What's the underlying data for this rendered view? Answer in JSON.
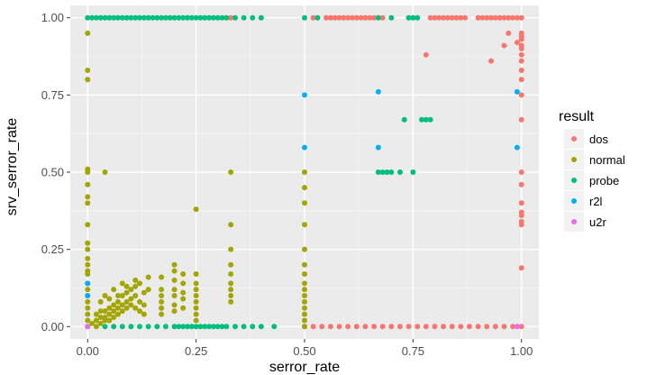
{
  "chart_data": {
    "type": "scatter",
    "xlabel": "serror_rate",
    "ylabel": "srv_serror_rate",
    "xlim": [
      -0.04,
      1.04
    ],
    "ylim": [
      -0.04,
      1.04
    ],
    "x_ticks": [
      0.0,
      0.25,
      0.5,
      0.75,
      1.0
    ],
    "x_tick_labels": [
      "0.00",
      "0.25",
      "0.50",
      "0.75",
      "1.00"
    ],
    "y_ticks": [
      0.0,
      0.25,
      0.5,
      0.75,
      1.0
    ],
    "y_tick_labels": [
      "0.00",
      "0.25",
      "0.50",
      "0.75",
      "1.00"
    ],
    "grid": true,
    "legend": {
      "title": "result",
      "placement": "right",
      "items": [
        {
          "label": "dos",
          "color": "#F8766D"
        },
        {
          "label": "normal",
          "color": "#A3A500"
        },
        {
          "label": "probe",
          "color": "#00BF7D"
        },
        {
          "label": "r2l",
          "color": "#00B0F6"
        },
        {
          "label": "u2r",
          "color": "#E76BF3"
        }
      ]
    },
    "series": [
      {
        "name": "dos",
        "color": "#F8766D",
        "points": [
          [
            0.33,
            1.0
          ],
          [
            0.52,
            1.0
          ],
          [
            0.55,
            1.0
          ],
          [
            0.56,
            1.0
          ],
          [
            0.57,
            1.0
          ],
          [
            0.58,
            1.0
          ],
          [
            0.59,
            1.0
          ],
          [
            0.6,
            1.0
          ],
          [
            0.61,
            1.0
          ],
          [
            0.62,
            1.0
          ],
          [
            0.63,
            1.0
          ],
          [
            0.64,
            1.0
          ],
          [
            0.65,
            1.0
          ],
          [
            0.66,
            1.0
          ],
          [
            0.68,
            1.0
          ],
          [
            0.79,
            1.0
          ],
          [
            0.8,
            1.0
          ],
          [
            0.81,
            1.0
          ],
          [
            0.82,
            1.0
          ],
          [
            0.83,
            1.0
          ],
          [
            0.84,
            1.0
          ],
          [
            0.85,
            1.0
          ],
          [
            0.86,
            1.0
          ],
          [
            0.87,
            1.0
          ],
          [
            0.9,
            1.0
          ],
          [
            0.91,
            1.0
          ],
          [
            0.92,
            1.0
          ],
          [
            0.93,
            1.0
          ],
          [
            0.94,
            1.0
          ],
          [
            0.95,
            1.0
          ],
          [
            0.96,
            1.0
          ],
          [
            0.97,
            1.0
          ],
          [
            0.98,
            1.0
          ],
          [
            0.99,
            1.0
          ],
          [
            1.0,
            1.0
          ],
          [
            0.97,
            0.95
          ],
          [
            0.99,
            0.92
          ],
          [
            0.96,
            0.91
          ],
          [
            0.78,
            0.88
          ],
          [
            0.93,
            0.86
          ],
          [
            1.0,
            0.95
          ],
          [
            1.0,
            0.94
          ],
          [
            1.0,
            0.93
          ],
          [
            1.0,
            0.91
          ],
          [
            1.0,
            0.9
          ],
          [
            1.0,
            0.88
          ],
          [
            1.0,
            0.86
          ],
          [
            1.0,
            0.83
          ],
          [
            1.0,
            0.8
          ],
          [
            1.0,
            0.75
          ],
          [
            1.0,
            0.67
          ],
          [
            1.0,
            0.5
          ],
          [
            1.0,
            0.46
          ],
          [
            1.0,
            0.4
          ],
          [
            1.0,
            0.37
          ],
          [
            1.0,
            0.36
          ],
          [
            1.0,
            0.34
          ],
          [
            1.0,
            0.33
          ],
          [
            1.0,
            0.19
          ],
          [
            0.5,
            0.0
          ],
          [
            0.52,
            0.0
          ],
          [
            0.54,
            0.0
          ],
          [
            0.56,
            0.0
          ],
          [
            0.58,
            0.0
          ],
          [
            0.6,
            0.0
          ],
          [
            0.62,
            0.0
          ],
          [
            0.64,
            0.0
          ],
          [
            0.66,
            0.0
          ],
          [
            0.68,
            0.0
          ],
          [
            0.7,
            0.0
          ],
          [
            0.72,
            0.0
          ],
          [
            0.74,
            0.0
          ],
          [
            0.76,
            0.0
          ],
          [
            0.78,
            0.0
          ],
          [
            0.8,
            0.0
          ],
          [
            0.82,
            0.0
          ],
          [
            0.84,
            0.0
          ],
          [
            0.86,
            0.0
          ],
          [
            0.88,
            0.0
          ],
          [
            0.9,
            0.0
          ],
          [
            0.92,
            0.0
          ],
          [
            0.94,
            0.0
          ],
          [
            0.96,
            0.0
          ],
          [
            0.98,
            0.0
          ],
          [
            1.0,
            0.0
          ]
        ]
      },
      {
        "name": "normal",
        "color": "#A3A500",
        "points": [
          [
            0.0,
            0.95
          ],
          [
            0.0,
            0.83
          ],
          [
            0.0,
            0.8
          ],
          [
            0.0,
            0.51
          ],
          [
            0.0,
            0.5
          ],
          [
            0.0,
            0.46
          ],
          [
            0.0,
            0.42
          ],
          [
            0.0,
            0.4
          ],
          [
            0.0,
            0.33
          ],
          [
            0.0,
            0.27
          ],
          [
            0.0,
            0.25
          ],
          [
            0.0,
            0.22
          ],
          [
            0.0,
            0.2
          ],
          [
            0.0,
            0.18
          ],
          [
            0.0,
            0.17
          ],
          [
            0.0,
            0.14
          ],
          [
            0.0,
            0.12
          ],
          [
            0.0,
            0.1
          ],
          [
            0.0,
            0.08
          ],
          [
            0.0,
            0.06
          ],
          [
            0.0,
            0.04
          ],
          [
            0.0,
            0.02
          ],
          [
            0.0,
            0.0
          ],
          [
            0.04,
            0.5
          ],
          [
            0.25,
            0.38
          ],
          [
            0.33,
            0.5
          ],
          [
            0.33,
            0.33
          ],
          [
            0.33,
            0.25
          ],
          [
            0.33,
            0.2
          ],
          [
            0.33,
            0.17
          ],
          [
            0.33,
            0.14
          ],
          [
            0.33,
            0.12
          ],
          [
            0.33,
            0.1
          ],
          [
            0.33,
            0.08
          ],
          [
            0.5,
            0.5
          ],
          [
            0.5,
            0.45
          ],
          [
            0.5,
            0.4
          ],
          [
            0.5,
            0.33
          ],
          [
            0.5,
            0.25
          ],
          [
            0.5,
            0.2
          ],
          [
            0.5,
            0.17
          ],
          [
            0.5,
            0.14
          ],
          [
            0.5,
            0.12
          ],
          [
            0.5,
            0.1
          ],
          [
            0.5,
            0.08
          ],
          [
            0.5,
            0.06
          ],
          [
            0.5,
            0.04
          ],
          [
            0.5,
            0.02
          ],
          [
            0.5,
            0.0
          ],
          [
            0.02,
            0.02
          ],
          [
            0.03,
            0.03
          ],
          [
            0.04,
            0.05
          ],
          [
            0.05,
            0.06
          ],
          [
            0.06,
            0.07
          ],
          [
            0.07,
            0.08
          ],
          [
            0.08,
            0.1
          ],
          [
            0.09,
            0.11
          ],
          [
            0.1,
            0.12
          ],
          [
            0.11,
            0.13
          ],
          [
            0.12,
            0.14
          ],
          [
            0.13,
            0.11
          ],
          [
            0.14,
            0.16
          ],
          [
            0.02,
            0.04
          ],
          [
            0.03,
            0.05
          ],
          [
            0.04,
            0.03
          ],
          [
            0.05,
            0.04
          ],
          [
            0.06,
            0.05
          ],
          [
            0.07,
            0.06
          ],
          [
            0.08,
            0.07
          ],
          [
            0.09,
            0.08
          ],
          [
            0.1,
            0.09
          ],
          [
            0.11,
            0.1
          ],
          [
            0.12,
            0.08
          ],
          [
            0.13,
            0.07
          ],
          [
            0.14,
            0.12
          ],
          [
            0.01,
            0.01
          ],
          [
            0.02,
            0.0
          ],
          [
            0.03,
            0.01
          ],
          [
            0.04,
            0.02
          ],
          [
            0.05,
            0.02
          ],
          [
            0.06,
            0.03
          ],
          [
            0.07,
            0.04
          ],
          [
            0.08,
            0.05
          ],
          [
            0.09,
            0.06
          ],
          [
            0.1,
            0.07
          ],
          [
            0.11,
            0.06
          ],
          [
            0.12,
            0.05
          ],
          [
            0.13,
            0.04
          ],
          [
            0.03,
            0.08
          ],
          [
            0.05,
            0.09
          ],
          [
            0.07,
            0.1
          ],
          [
            0.09,
            0.13
          ],
          [
            0.11,
            0.15
          ],
          [
            0.06,
            0.12
          ],
          [
            0.08,
            0.14
          ],
          [
            0.04,
            0.1
          ],
          [
            0.17,
            0.16
          ],
          [
            0.17,
            0.12
          ],
          [
            0.17,
            0.1
          ],
          [
            0.17,
            0.08
          ],
          [
            0.17,
            0.06
          ],
          [
            0.17,
            0.04
          ],
          [
            0.2,
            0.2
          ],
          [
            0.2,
            0.18
          ],
          [
            0.2,
            0.15
          ],
          [
            0.2,
            0.12
          ],
          [
            0.2,
            0.1
          ],
          [
            0.2,
            0.07
          ],
          [
            0.2,
            0.05
          ],
          [
            0.22,
            0.17
          ],
          [
            0.22,
            0.14
          ],
          [
            0.22,
            0.11
          ],
          [
            0.22,
            0.09
          ],
          [
            0.22,
            0.06
          ],
          [
            0.25,
            0.17
          ],
          [
            0.25,
            0.14
          ],
          [
            0.25,
            0.12
          ],
          [
            0.25,
            0.1
          ],
          [
            0.25,
            0.08
          ],
          [
            0.25,
            0.06
          ],
          [
            0.25,
            0.04
          ],
          [
            0.25,
            0.02
          ]
        ]
      },
      {
        "name": "probe",
        "color": "#00BF7D",
        "points": [
          [
            0.0,
            1.0
          ],
          [
            0.01,
            1.0
          ],
          [
            0.02,
            1.0
          ],
          [
            0.03,
            1.0
          ],
          [
            0.04,
            1.0
          ],
          [
            0.05,
            1.0
          ],
          [
            0.06,
            1.0
          ],
          [
            0.07,
            1.0
          ],
          [
            0.08,
            1.0
          ],
          [
            0.09,
            1.0
          ],
          [
            0.1,
            1.0
          ],
          [
            0.11,
            1.0
          ],
          [
            0.12,
            1.0
          ],
          [
            0.13,
            1.0
          ],
          [
            0.14,
            1.0
          ],
          [
            0.15,
            1.0
          ],
          [
            0.16,
            1.0
          ],
          [
            0.17,
            1.0
          ],
          [
            0.18,
            1.0
          ],
          [
            0.19,
            1.0
          ],
          [
            0.2,
            1.0
          ],
          [
            0.21,
            1.0
          ],
          [
            0.22,
            1.0
          ],
          [
            0.23,
            1.0
          ],
          [
            0.24,
            1.0
          ],
          [
            0.25,
            1.0
          ],
          [
            0.26,
            1.0
          ],
          [
            0.27,
            1.0
          ],
          [
            0.28,
            1.0
          ],
          [
            0.29,
            1.0
          ],
          [
            0.3,
            1.0
          ],
          [
            0.31,
            1.0
          ],
          [
            0.32,
            1.0
          ],
          [
            0.34,
            1.0
          ],
          [
            0.36,
            1.0
          ],
          [
            0.38,
            1.0
          ],
          [
            0.4,
            1.0
          ],
          [
            0.5,
            1.0
          ],
          [
            0.53,
            1.0
          ],
          [
            0.67,
            1.0
          ],
          [
            0.7,
            1.0
          ],
          [
            0.74,
            1.0
          ],
          [
            0.75,
            1.0
          ],
          [
            0.76,
            1.0
          ],
          [
            0.73,
            0.67
          ],
          [
            0.77,
            0.67
          ],
          [
            0.78,
            0.67
          ],
          [
            0.79,
            0.67
          ],
          [
            0.67,
            0.5
          ],
          [
            0.68,
            0.5
          ],
          [
            0.69,
            0.5
          ],
          [
            0.7,
            0.5
          ],
          [
            0.72,
            0.5
          ],
          [
            0.75,
            0.5
          ],
          [
            0.04,
            0.0
          ],
          [
            0.06,
            0.0
          ],
          [
            0.08,
            0.0
          ],
          [
            0.1,
            0.0
          ],
          [
            0.12,
            0.0
          ],
          [
            0.14,
            0.0
          ],
          [
            0.16,
            0.0
          ],
          [
            0.18,
            0.0
          ],
          [
            0.2,
            0.0
          ],
          [
            0.21,
            0.0
          ],
          [
            0.22,
            0.0
          ],
          [
            0.23,
            0.0
          ],
          [
            0.24,
            0.0
          ],
          [
            0.25,
            0.0
          ],
          [
            0.26,
            0.0
          ],
          [
            0.27,
            0.0
          ],
          [
            0.28,
            0.0
          ],
          [
            0.29,
            0.0
          ],
          [
            0.3,
            0.0
          ],
          [
            0.31,
            0.0
          ],
          [
            0.32,
            0.0
          ],
          [
            0.34,
            0.0
          ],
          [
            0.36,
            0.0
          ],
          [
            0.38,
            0.0
          ],
          [
            0.4,
            0.0
          ],
          [
            0.43,
            0.0
          ]
        ]
      },
      {
        "name": "r2l",
        "color": "#00B0F6",
        "points": [
          [
            0.0,
            0.14
          ],
          [
            0.5,
            0.75
          ],
          [
            0.5,
            0.58
          ],
          [
            0.67,
            0.76
          ],
          [
            0.67,
            0.58
          ],
          [
            0.99,
            0.76
          ],
          [
            0.99,
            0.58
          ],
          [
            0.0,
            0.1
          ]
        ]
      },
      {
        "name": "u2r",
        "color": "#E76BF3",
        "points": [
          [
            0.99,
            0.0
          ],
          [
            0.0,
            0.0
          ]
        ]
      }
    ]
  }
}
